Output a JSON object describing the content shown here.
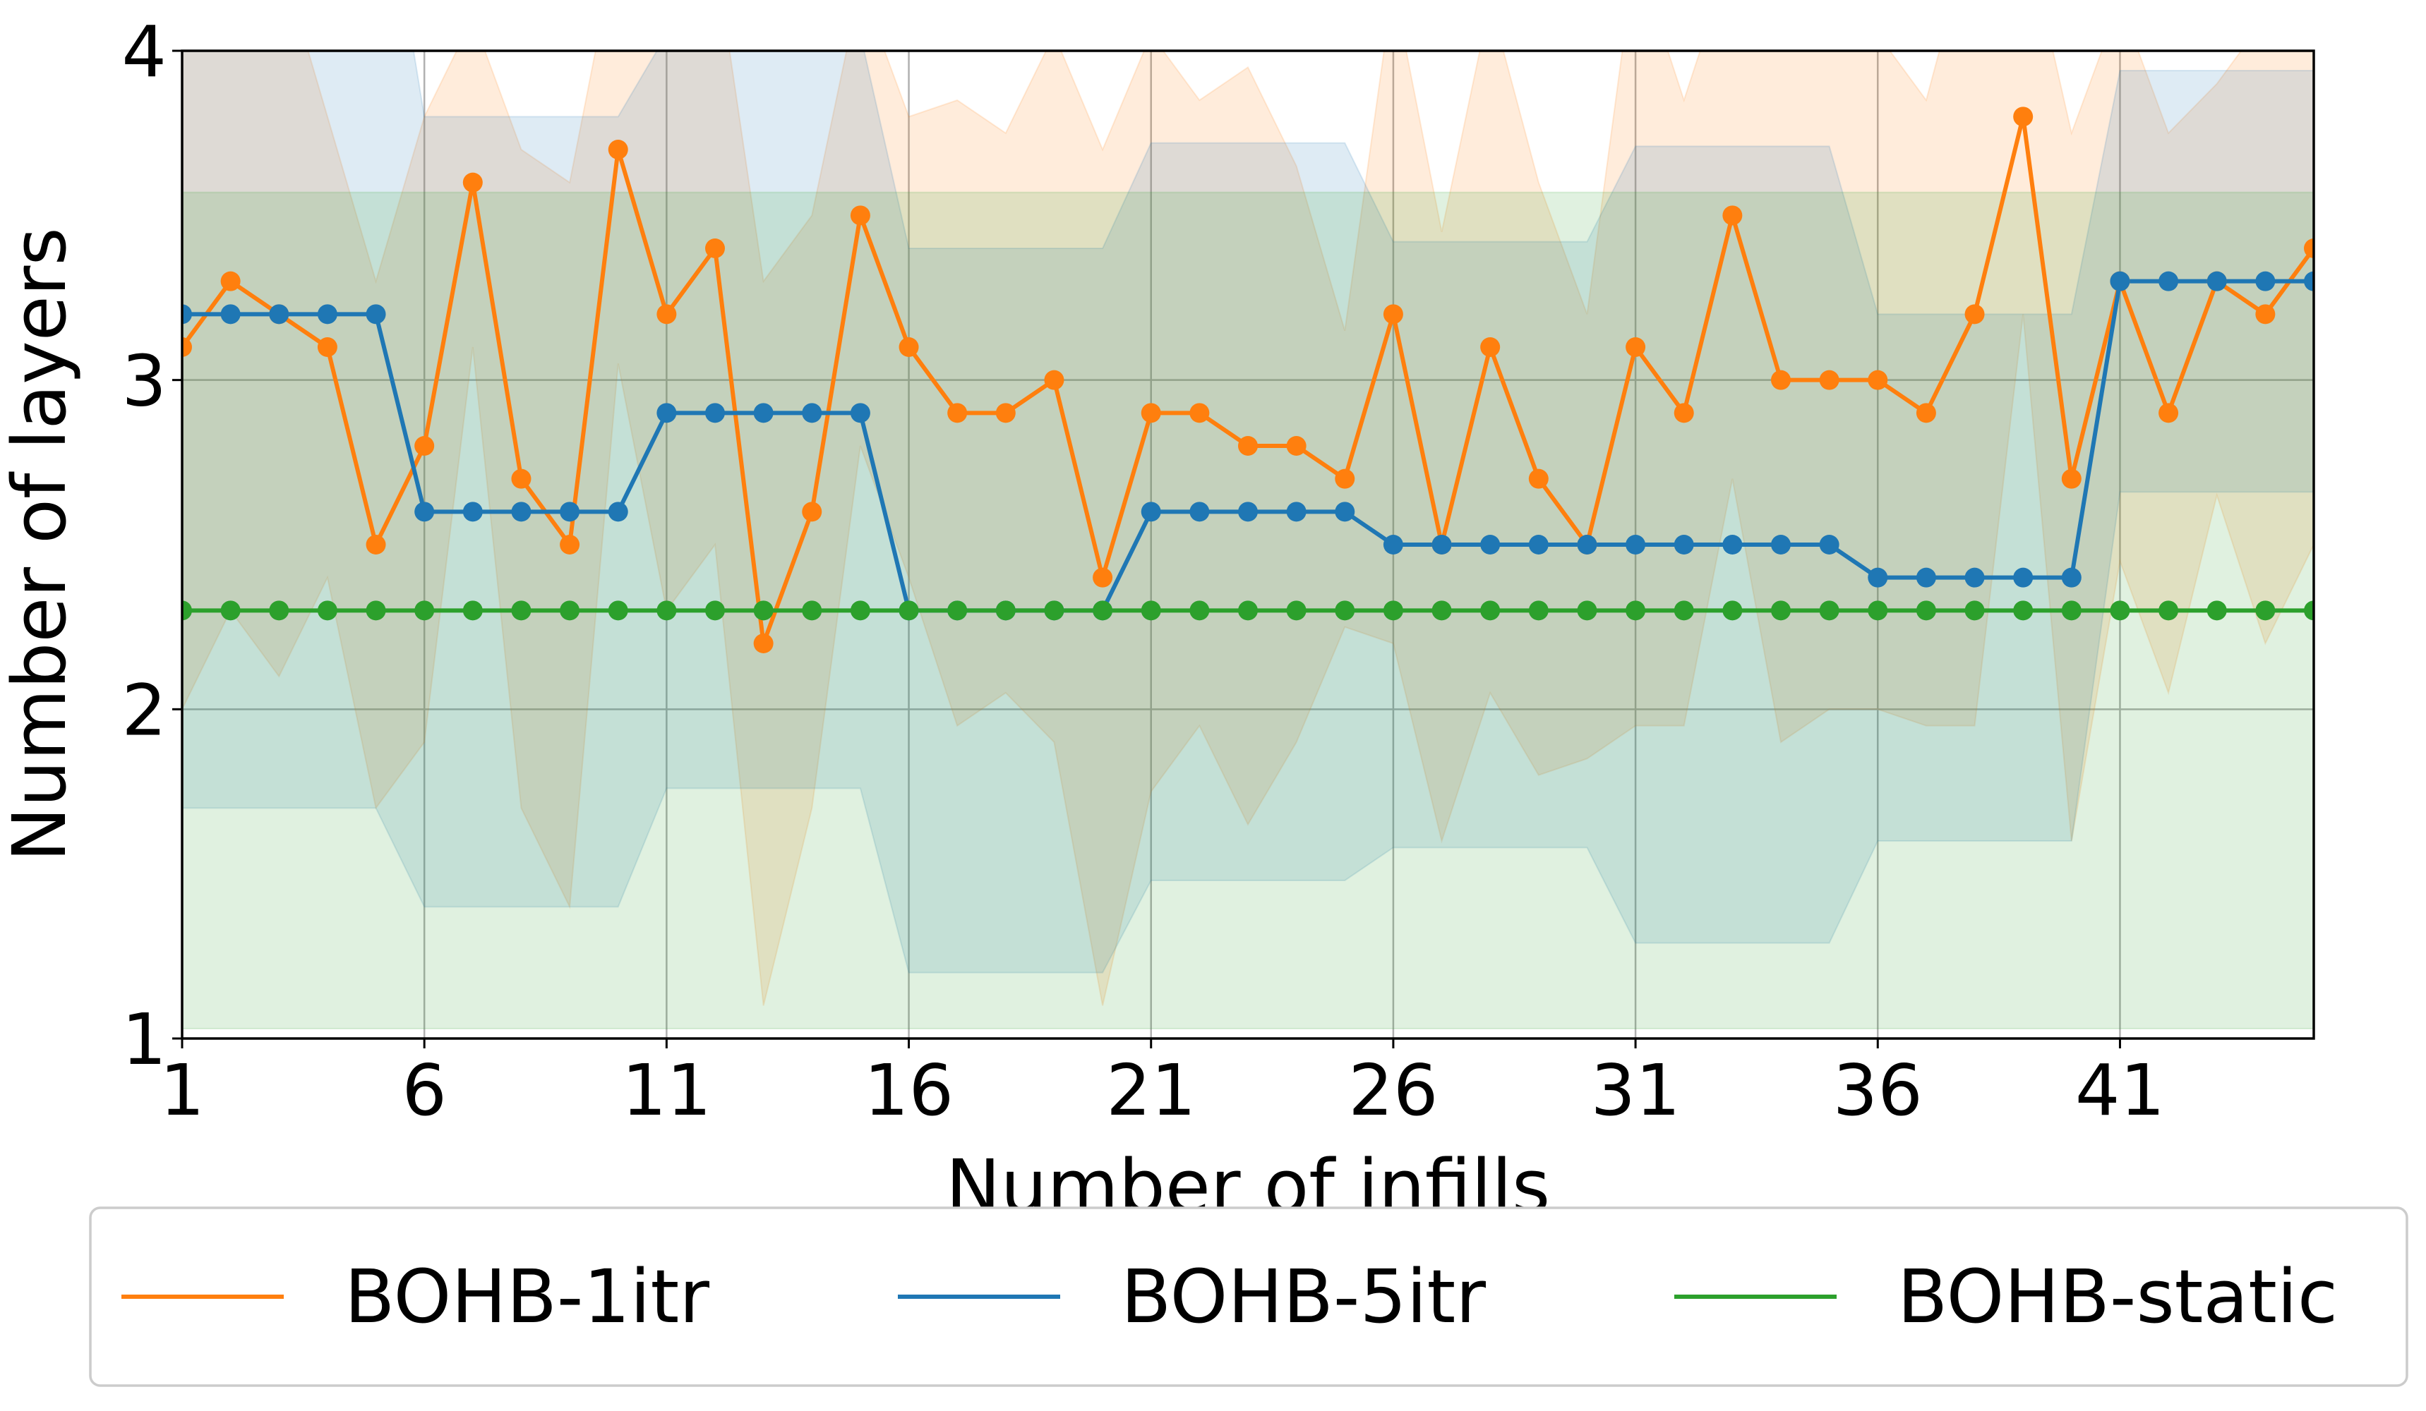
{
  "chart_data": {
    "type": "line",
    "xlabel": "Number of infills",
    "ylabel": "Number of layers",
    "xlim": [
      1,
      45
    ],
    "ylim": [
      1,
      4
    ],
    "xticks": [
      1,
      6,
      11,
      16,
      21,
      26,
      31,
      36,
      41
    ],
    "yticks": [
      1,
      2,
      3,
      4
    ],
    "grid": true,
    "legend_position": "bottom-center",
    "x": [
      1,
      2,
      3,
      4,
      5,
      6,
      7,
      8,
      9,
      10,
      11,
      12,
      13,
      14,
      15,
      16,
      17,
      18,
      19,
      20,
      21,
      22,
      23,
      24,
      25,
      26,
      27,
      28,
      29,
      30,
      31,
      32,
      33,
      34,
      35,
      36,
      37,
      38,
      39,
      40,
      41,
      42,
      43,
      44,
      45
    ],
    "series": [
      {
        "name": "BOHB-1itr",
        "color": "#ff7f0e",
        "values": [
          3.1,
          3.3,
          3.2,
          3.1,
          2.5,
          2.8,
          3.6,
          2.7,
          2.5,
          3.7,
          3.2,
          3.4,
          2.2,
          2.6,
          3.5,
          3.1,
          2.9,
          2.9,
          3.0,
          2.4,
          2.9,
          2.9,
          2.8,
          2.8,
          2.7,
          3.2,
          2.5,
          3.1,
          2.7,
          2.5,
          3.1,
          2.9,
          3.5,
          3.0,
          3.0,
          3.0,
          2.9,
          3.2,
          3.8,
          2.7,
          3.3,
          2.9,
          3.3,
          3.2,
          3.4
        ],
        "band_upper": [
          4.2,
          4.3,
          4.3,
          3.8,
          3.3,
          3.8,
          4.1,
          3.7,
          3.6,
          4.35,
          4.1,
          4.3,
          3.3,
          3.5,
          4.2,
          3.8,
          3.85,
          3.75,
          4.05,
          3.7,
          4.05,
          3.85,
          3.95,
          3.65,
          3.15,
          4.2,
          3.45,
          4.15,
          3.6,
          3.2,
          4.3,
          3.85,
          4.3,
          4.1,
          4.1,
          4.05,
          3.85,
          4.4,
          4.4,
          3.75,
          4.15,
          3.75,
          3.9,
          4.1,
          4.3
        ],
        "band_lower": [
          2.0,
          2.3,
          2.1,
          2.4,
          1.7,
          1.9,
          3.1,
          1.7,
          1.4,
          3.05,
          2.3,
          2.5,
          1.1,
          1.7,
          2.8,
          2.4,
          1.95,
          2.05,
          1.9,
          1.1,
          1.75,
          1.95,
          1.65,
          1.9,
          2.25,
          2.2,
          1.6,
          2.05,
          1.8,
          1.85,
          1.95,
          1.95,
          2.7,
          1.9,
          2.0,
          2.0,
          1.95,
          1.95,
          3.2,
          1.6,
          2.45,
          2.05,
          2.65,
          2.2,
          2.5
        ]
      },
      {
        "name": "BOHB-5itr",
        "color": "#1f77b4",
        "values": [
          3.2,
          3.2,
          3.2,
          3.2,
          3.2,
          2.6,
          2.6,
          2.6,
          2.6,
          2.6,
          2.9,
          2.9,
          2.9,
          2.9,
          2.9,
          2.3,
          2.3,
          2.3,
          2.3,
          2.3,
          2.6,
          2.6,
          2.6,
          2.6,
          2.6,
          2.5,
          2.5,
          2.5,
          2.5,
          2.5,
          2.5,
          2.5,
          2.5,
          2.5,
          2.5,
          2.4,
          2.4,
          2.4,
          2.4,
          2.4,
          3.3,
          3.3,
          3.3,
          3.3,
          3.3
        ],
        "band_upper": [
          4.7,
          4.7,
          4.7,
          4.7,
          4.7,
          3.8,
          3.8,
          3.8,
          3.8,
          3.8,
          4.05,
          4.05,
          4.05,
          4.05,
          4.05,
          3.4,
          3.4,
          3.4,
          3.4,
          3.4,
          3.72,
          3.72,
          3.72,
          3.72,
          3.72,
          3.42,
          3.42,
          3.42,
          3.42,
          3.42,
          3.71,
          3.71,
          3.71,
          3.71,
          3.71,
          3.2,
          3.2,
          3.2,
          3.2,
          3.2,
          3.94,
          3.94,
          3.94,
          3.94,
          3.94
        ],
        "band_lower": [
          1.7,
          1.7,
          1.7,
          1.7,
          1.7,
          1.4,
          1.4,
          1.4,
          1.4,
          1.4,
          1.76,
          1.76,
          1.76,
          1.76,
          1.76,
          1.2,
          1.2,
          1.2,
          1.2,
          1.2,
          1.48,
          1.48,
          1.48,
          1.48,
          1.48,
          1.58,
          1.58,
          1.58,
          1.58,
          1.58,
          1.29,
          1.29,
          1.29,
          1.29,
          1.29,
          1.6,
          1.6,
          1.6,
          1.6,
          1.6,
          2.66,
          2.66,
          2.66,
          2.66,
          2.66
        ]
      },
      {
        "name": "BOHB-static",
        "color": "#2ca02c",
        "values": [
          2.3,
          2.3,
          2.3,
          2.3,
          2.3,
          2.3,
          2.3,
          2.3,
          2.3,
          2.3,
          2.3,
          2.3,
          2.3,
          2.3,
          2.3,
          2.3,
          2.3,
          2.3,
          2.3,
          2.3,
          2.3,
          2.3,
          2.3,
          2.3,
          2.3,
          2.3,
          2.3,
          2.3,
          2.3,
          2.3,
          2.3,
          2.3,
          2.3,
          2.3,
          2.3,
          2.3,
          2.3,
          2.3,
          2.3,
          2.3,
          2.3,
          2.3,
          2.3,
          2.3,
          2.3
        ],
        "band_upper": [
          3.57,
          3.57,
          3.57,
          3.57,
          3.57,
          3.57,
          3.57,
          3.57,
          3.57,
          3.57,
          3.57,
          3.57,
          3.57,
          3.57,
          3.57,
          3.57,
          3.57,
          3.57,
          3.57,
          3.57,
          3.57,
          3.57,
          3.57,
          3.57,
          3.57,
          3.57,
          3.57,
          3.57,
          3.57,
          3.57,
          3.57,
          3.57,
          3.57,
          3.57,
          3.57,
          3.57,
          3.57,
          3.57,
          3.57,
          3.57,
          3.57,
          3.57,
          3.57,
          3.57,
          3.57
        ],
        "band_lower": [
          1.03,
          1.03,
          1.03,
          1.03,
          1.03,
          1.03,
          1.03,
          1.03,
          1.03,
          1.03,
          1.03,
          1.03,
          1.03,
          1.03,
          1.03,
          1.03,
          1.03,
          1.03,
          1.03,
          1.03,
          1.03,
          1.03,
          1.03,
          1.03,
          1.03,
          1.03,
          1.03,
          1.03,
          1.03,
          1.03,
          1.03,
          1.03,
          1.03,
          1.03,
          1.03,
          1.03,
          1.03,
          1.03,
          1.03,
          1.03,
          1.03,
          1.03,
          1.03,
          1.03,
          1.03
        ]
      }
    ]
  }
}
